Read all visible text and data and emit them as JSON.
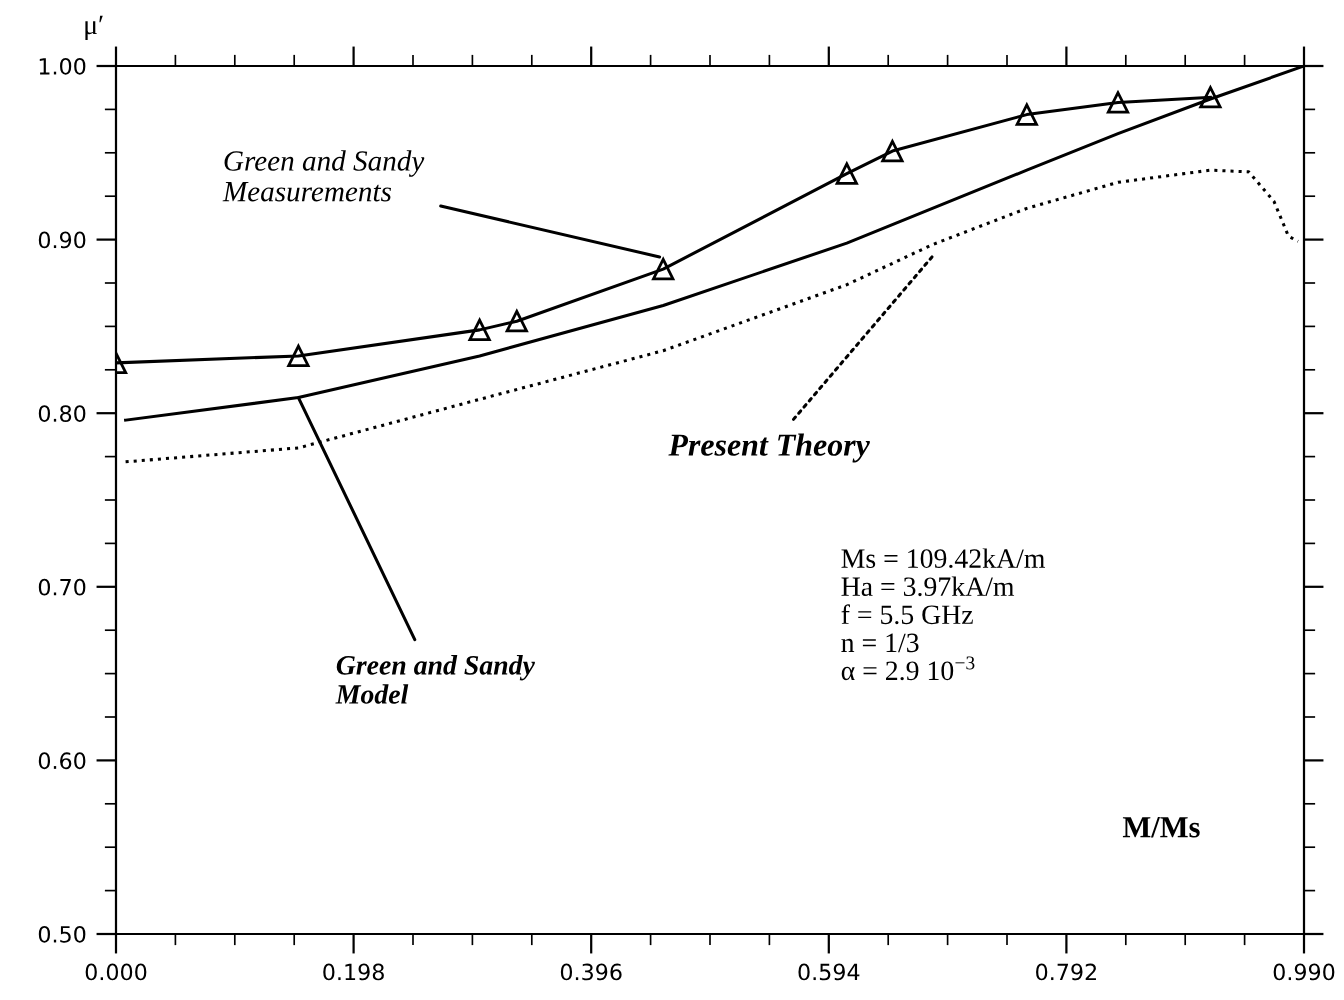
{
  "chart_data": {
    "type": "line",
    "xlabel": "M/Ms",
    "ylabel": "μ′",
    "xlim": [
      0,
      0.99
    ],
    "ylim": [
      0.5,
      1.0
    ],
    "xticks": [
      {
        "value": 0,
        "label": "0.000"
      },
      {
        "value": 0.0495,
        "label": null
      },
      {
        "value": 0.099,
        "label": null
      },
      {
        "value": 0.1485,
        "label": null
      },
      {
        "value": 0.198,
        "label": "0.198"
      },
      {
        "value": 0.2475,
        "label": null
      },
      {
        "value": 0.297,
        "label": null
      },
      {
        "value": 0.3465,
        "label": null
      },
      {
        "value": 0.396,
        "label": "0.396"
      },
      {
        "value": 0.4455,
        "label": null
      },
      {
        "value": 0.495,
        "label": null
      },
      {
        "value": 0.5445,
        "label": null
      },
      {
        "value": 0.594,
        "label": "0.594"
      },
      {
        "value": 0.6435,
        "label": null
      },
      {
        "value": 0.693,
        "label": null
      },
      {
        "value": 0.7425,
        "label": null
      },
      {
        "value": 0.792,
        "label": "0.792"
      },
      {
        "value": 0.8415,
        "label": null
      },
      {
        "value": 0.891,
        "label": null
      },
      {
        "value": 0.9405,
        "label": null
      },
      {
        "value": 0.99,
        "label": "0.990"
      }
    ],
    "yticks": [
      {
        "value": 0.5,
        "label": "0.50"
      },
      {
        "value": 0.525,
        "label": null
      },
      {
        "value": 0.55,
        "label": null
      },
      {
        "value": 0.575,
        "label": null
      },
      {
        "value": 0.6,
        "label": "0.60"
      },
      {
        "value": 0.625,
        "label": null
      },
      {
        "value": 0.65,
        "label": null
      },
      {
        "value": 0.675,
        "label": null
      },
      {
        "value": 0.7,
        "label": "0.70"
      },
      {
        "value": 0.725,
        "label": null
      },
      {
        "value": 0.75,
        "label": null
      },
      {
        "value": 0.775,
        "label": null
      },
      {
        "value": 0.8,
        "label": "0.80"
      },
      {
        "value": 0.825,
        "label": null
      },
      {
        "value": 0.85,
        "label": null
      },
      {
        "value": 0.875,
        "label": null
      },
      {
        "value": 0.9,
        "label": "0.90"
      },
      {
        "value": 0.925,
        "label": null
      },
      {
        "value": 0.95,
        "label": null
      },
      {
        "value": 0.975,
        "label": null
      },
      {
        "value": 1.0,
        "label": "1.00"
      }
    ],
    "grid": false,
    "legend": false,
    "series": [
      {
        "color": "#000000",
        "marker": "triangle",
        "line_style": "solid",
        "x": [
          0,
          0.152,
          0.303,
          0.334,
          0.456,
          0.609,
          0.647,
          0.759,
          0.835,
          0.912
        ],
        "values": [
          0.829,
          0.833,
          0.848,
          0.853,
          0.883,
          0.938,
          0.951,
          0.972,
          0.979,
          0.982
        ]
      },
      {
        "color": "#000000",
        "marker": "none",
        "line_style": "solid",
        "x": [
          0.008,
          0.152,
          0.303,
          0.456,
          0.609,
          0.759,
          0.835,
          0.912,
          0.99
        ],
        "values": [
          0.796,
          0.809,
          0.833,
          0.862,
          0.898,
          0.94,
          0.961,
          0.981,
          1.0
        ]
      },
      {
        "color": "#000000",
        "marker": "none",
        "line_style": "dotted",
        "x": [
          0.008,
          0.152,
          0.303,
          0.456,
          0.609,
          0.68,
          0.759,
          0.835,
          0.912,
          0.944,
          0.965,
          0.977,
          0.985
        ],
        "values": [
          0.772,
          0.78,
          0.808,
          0.836,
          0.874,
          0.897,
          0.918,
          0.933,
          0.94,
          0.939,
          0.922,
          0.902,
          0.899
        ]
      }
    ],
    "annotations": [
      {
        "text": "Green and Sandy\nMeasurements",
        "x": 0.453,
        "y": 0.89
      },
      {
        "text": "Present Theory",
        "x": 0.68,
        "y": 0.89
      },
      {
        "text": "Green and Sandy\nModel",
        "x": 0.152,
        "y": 0.809
      },
      "Ms = 109.42kA/m\nHa = 3.97kA/m\nf = 5.5 GHz\nn = 1/3\nα = 2.9 10$^{−3}$"
    ]
  }
}
